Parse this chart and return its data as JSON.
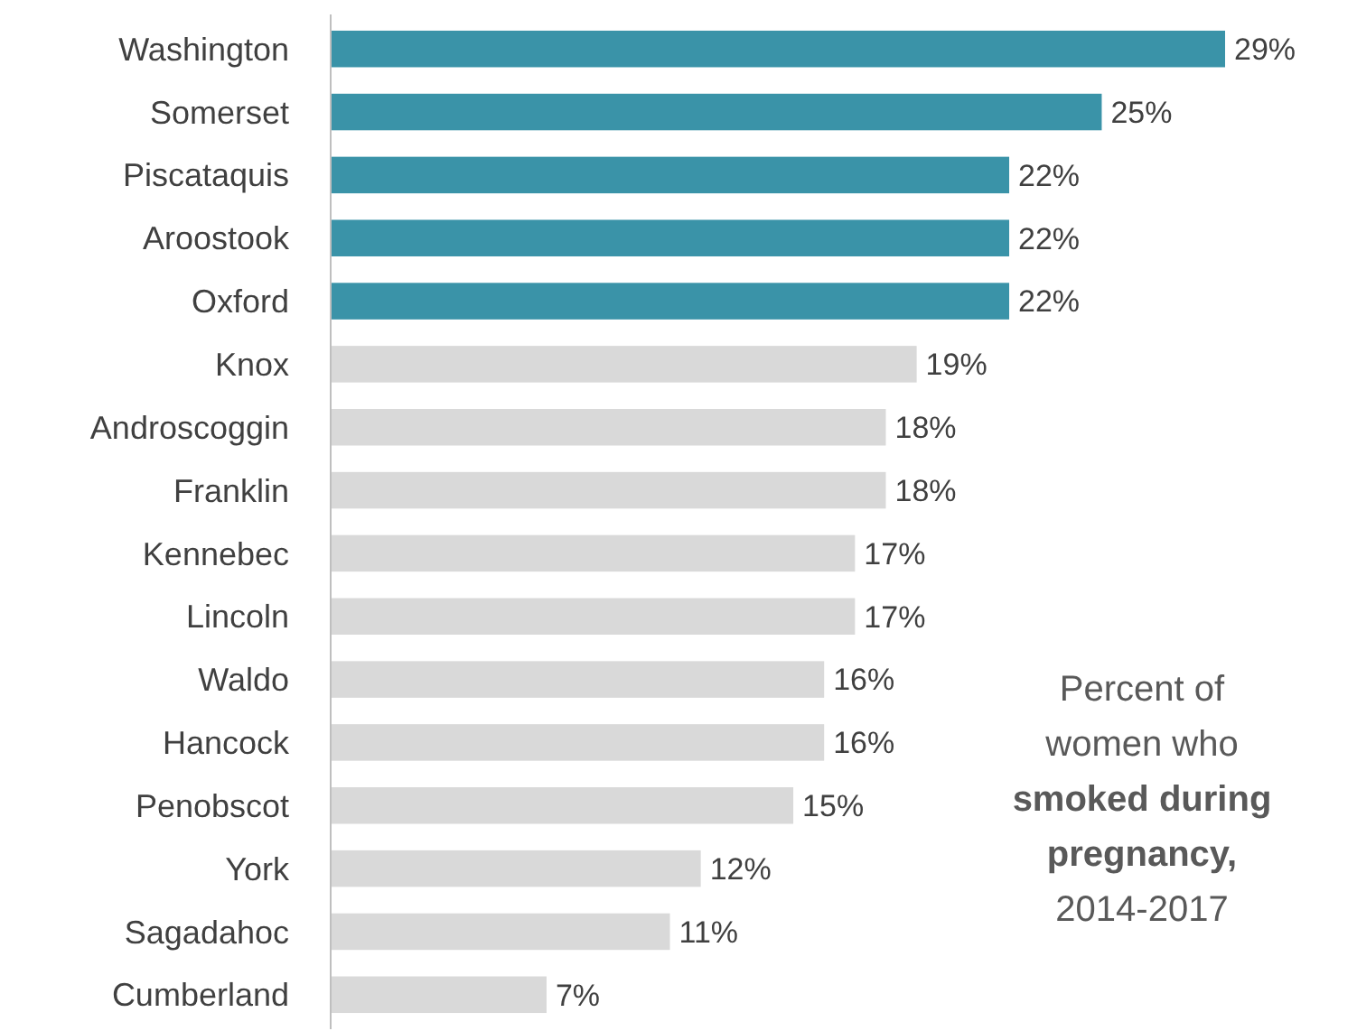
{
  "chart_data": {
    "type": "bar",
    "orientation": "horizontal",
    "categories": [
      "Washington",
      "Somerset",
      "Piscataquis",
      "Aroostook",
      "Oxford",
      "Knox",
      "Androscoggin",
      "Franklin",
      "Kennebec",
      "Lincoln",
      "Waldo",
      "Hancock",
      "Penobscot",
      "York",
      "Sagadahoc",
      "Cumberland"
    ],
    "values": [
      29,
      25,
      22,
      22,
      22,
      19,
      18,
      18,
      17,
      17,
      16,
      16,
      15,
      12,
      11,
      7
    ],
    "colors": [
      "#3a93a8",
      "#3a93a8",
      "#3a93a8",
      "#3a93a8",
      "#3a93a8",
      "#d9d9d9",
      "#d9d9d9",
      "#d9d9d9",
      "#d9d9d9",
      "#d9d9d9",
      "#d9d9d9",
      "#d9d9d9",
      "#d9d9d9",
      "#d9d9d9",
      "#d9d9d9",
      "#d9d9d9"
    ],
    "value_labels": [
      "29%",
      "25%",
      "22%",
      "22%",
      "22%",
      "19%",
      "18%",
      "18%",
      "17%",
      "17%",
      "16%",
      "16%",
      "15%",
      "12%",
      "11%",
      "7%"
    ],
    "annotations": [
      "Percent of women who smoked during pregnancy, 2014-2017"
    ]
  }
}
